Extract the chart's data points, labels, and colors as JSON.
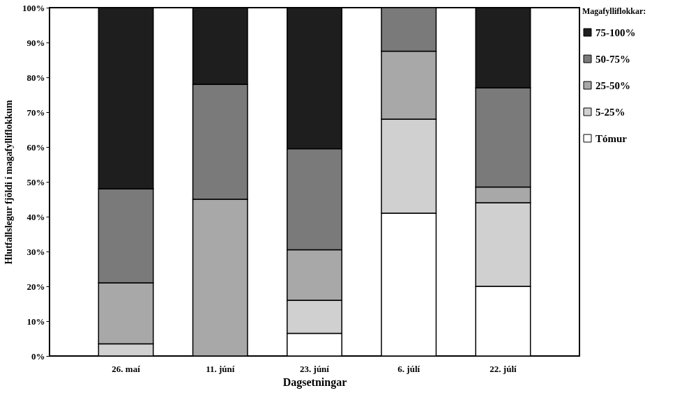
{
  "chart_data": {
    "type": "bar",
    "stacked": true,
    "xlabel": "Dagsetningar",
    "ylabel": "Hlutfallslegur fjöldi í magafylliflokkum",
    "legend_title": "Magafylliflokkar:",
    "legend": "right",
    "grid": false,
    "categories": [
      "26. maí",
      "11. júní",
      "23. júní",
      "6. júlí",
      "22. júlí"
    ],
    "ylim": [
      0,
      100
    ],
    "yticks": [
      {
        "value": 0,
        "label": "0%"
      },
      {
        "value": 10,
        "label": "10%"
      },
      {
        "value": 20,
        "label": "20%"
      },
      {
        "value": 30,
        "label": "30%"
      },
      {
        "value": 40,
        "label": "40%"
      },
      {
        "value": 50,
        "label": "50%"
      },
      {
        "value": 60,
        "label": "60%"
      },
      {
        "value": 70,
        "label": "70%"
      },
      {
        "value": 80,
        "label": "80%"
      },
      {
        "value": 90,
        "label": "90%"
      },
      {
        "value": 100,
        "label": "100%"
      }
    ],
    "series": [
      {
        "name": "Tómur",
        "color": "#ffffff",
        "values": [
          0,
          0,
          6.5,
          41,
          20
        ]
      },
      {
        "name": "5-25%",
        "color": "#d0d0d0",
        "values": [
          3.5,
          0,
          9.5,
          27,
          24
        ]
      },
      {
        "name": "25-50%",
        "color": "#a8a8a8",
        "values": [
          17.5,
          45,
          14.5,
          19.5,
          4.5
        ]
      },
      {
        "name": "50-75%",
        "color": "#7a7a7a",
        "values": [
          27,
          33,
          29,
          12.5,
          28.5
        ]
      },
      {
        "name": "75-100%",
        "color": "#1e1e1e",
        "values": [
          52,
          22,
          40.5,
          0,
          23
        ]
      }
    ]
  }
}
